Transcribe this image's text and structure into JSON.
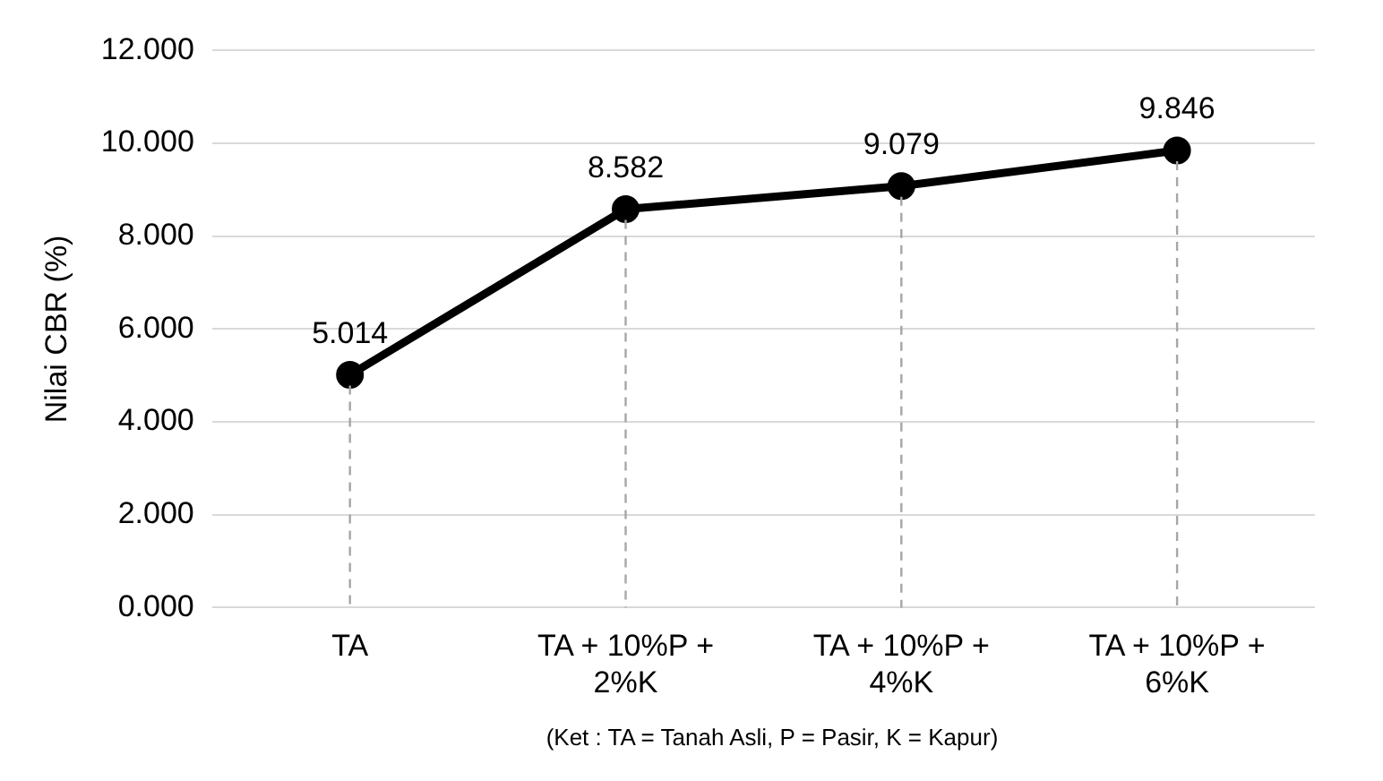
{
  "chart_data": {
    "type": "line",
    "ylabel": "Nilai CBR (%)",
    "categories": [
      "TA",
      "TA + 10%P + 2%K",
      "TA + 10%P + 4%K",
      "TA + 10%P + 6%K"
    ],
    "series": [
      {
        "color": "#000000",
        "values": [
          5.014,
          8.582,
          9.079,
          9.846
        ]
      }
    ],
    "ylim": [
      0,
      12
    ],
    "yticks": [
      {
        "value": 0,
        "label": "0.000"
      },
      {
        "value": 2,
        "label": "2.000"
      },
      {
        "value": 4,
        "label": "4.000"
      },
      {
        "value": 6,
        "label": "6.000"
      },
      {
        "value": 8,
        "label": "8.000"
      },
      {
        "value": 10,
        "label": "10.000"
      },
      {
        "value": 12,
        "label": "12.000"
      }
    ],
    "grid": true,
    "legend": false,
    "marker": "circle",
    "line_style": "solid",
    "data_labels": true,
    "annotations": [
      "(Ket : TA = Tanah Asli, P = Pasir, K = Kapur)"
    ]
  }
}
